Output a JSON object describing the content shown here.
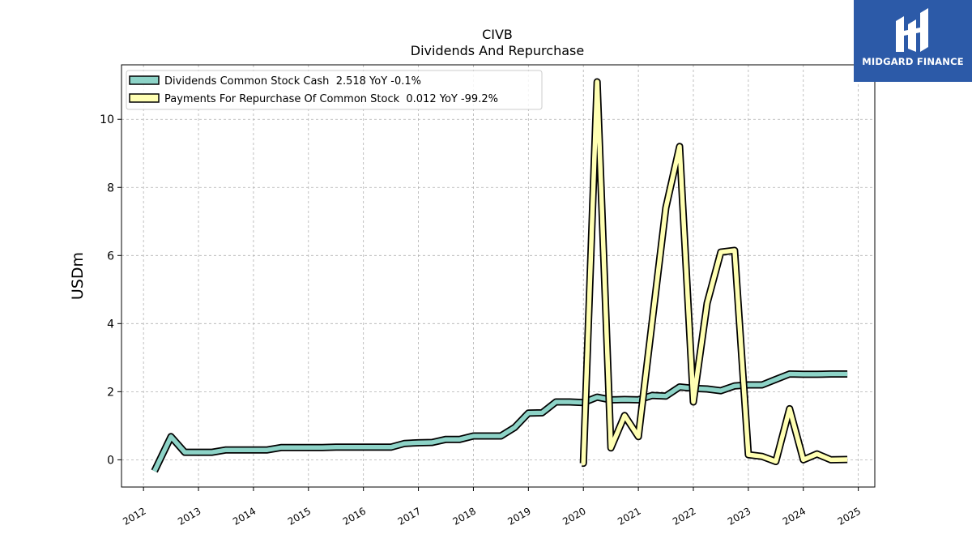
{
  "brand": {
    "name": "MIDGARD FINANCE",
    "bg": "#2c5aa8"
  },
  "chart_data": {
    "type": "line",
    "title": "CIVB",
    "subtitle": "Dividends And Repurchase",
    "ylabel": "USDm",
    "xlim": [
      2011.6,
      2025.3
    ],
    "ylim": [
      -0.8,
      11.6
    ],
    "yticks": [
      0,
      2,
      4,
      6,
      8,
      10
    ],
    "xticks": [
      2012,
      2013,
      2014,
      2015,
      2016,
      2017,
      2018,
      2019,
      2020,
      2021,
      2022,
      2023,
      2024,
      2025
    ],
    "grid": true,
    "legend_position": "top-left",
    "series": [
      {
        "name": "Dividends Common Stock Cash",
        "legend_label": "Dividends Common Stock Cash  2.518 YoY -0.1%",
        "color": "#8dd3c7",
        "x": [
          2012.2,
          2012.5,
          2012.75,
          2013.0,
          2013.25,
          2013.5,
          2013.75,
          2014.0,
          2014.25,
          2014.5,
          2014.75,
          2015.0,
          2015.25,
          2015.5,
          2015.75,
          2016.0,
          2016.25,
          2016.5,
          2016.75,
          2017.0,
          2017.25,
          2017.5,
          2017.75,
          2018.0,
          2018.25,
          2018.5,
          2018.75,
          2019.0,
          2019.25,
          2019.5,
          2019.75,
          2020.0,
          2020.25,
          2020.5,
          2020.75,
          2021.0,
          2021.25,
          2021.5,
          2021.75,
          2022.0,
          2022.25,
          2022.5,
          2022.75,
          2023.0,
          2023.25,
          2023.5,
          2023.75,
          2024.0,
          2024.25,
          2024.5,
          2024.8
        ],
        "values": [
          -0.33,
          0.68,
          0.22,
          0.22,
          0.22,
          0.29,
          0.29,
          0.29,
          0.29,
          0.36,
          0.36,
          0.36,
          0.36,
          0.37,
          0.37,
          0.37,
          0.37,
          0.37,
          0.48,
          0.5,
          0.51,
          0.6,
          0.6,
          0.7,
          0.7,
          0.7,
          0.95,
          1.37,
          1.38,
          1.7,
          1.7,
          1.68,
          1.84,
          1.76,
          1.77,
          1.76,
          1.89,
          1.87,
          2.14,
          2.1,
          2.08,
          2.03,
          2.17,
          2.2,
          2.2,
          2.36,
          2.52,
          2.51,
          2.51,
          2.52,
          2.52
        ]
      },
      {
        "name": "Payments For Repurchase Of Common Stock",
        "legend_label": "Payments For Repurchase Of Common Stock  0.012 YoY -99.2%",
        "color": "#ffffb3",
        "x": [
          2019.97,
          2020.0,
          2020.25,
          2020.5,
          2020.75,
          2021.0,
          2021.5,
          2021.75,
          2022.0,
          2022.25,
          2022.5,
          2022.75,
          2023.0,
          2023.25,
          2023.5,
          2023.75,
          2024.0,
          2024.25,
          2024.5,
          2024.8
        ],
        "values": [
          -0.1,
          -0.1,
          11.1,
          0.35,
          1.3,
          0.68,
          7.4,
          9.2,
          1.7,
          4.6,
          6.1,
          6.15,
          0.15,
          0.1,
          -0.05,
          1.5,
          0.0,
          0.17,
          0.0,
          0.01
        ]
      }
    ]
  }
}
